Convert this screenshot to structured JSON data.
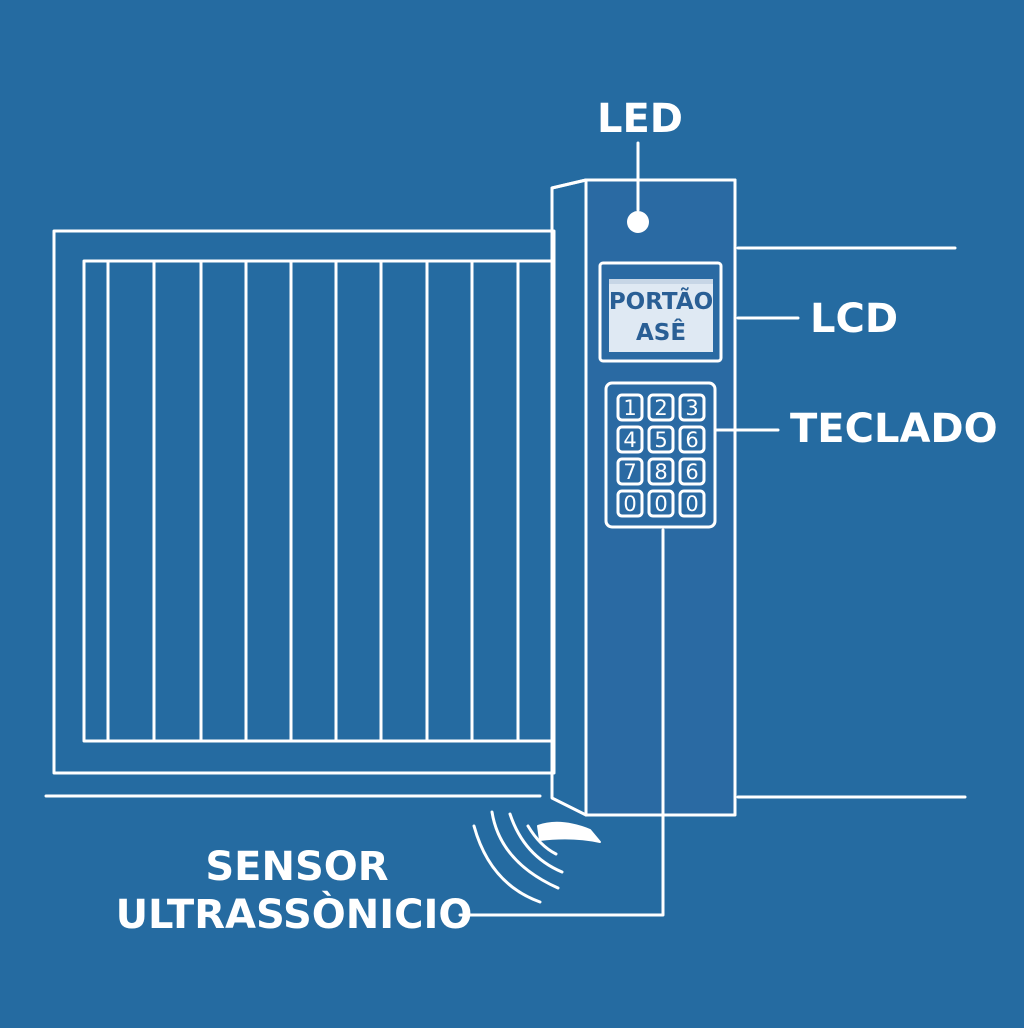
{
  "colors": {
    "background": "#256ba1",
    "line": "#ffffff",
    "lcd_screen": "#dfe9f3",
    "lcd_text": "#2a5f95",
    "panel": "#2a6aa3"
  },
  "labels": {
    "led": "LED",
    "lcd": "LCD",
    "keypad": "TECLADO",
    "sensor_line1": "SENSOR",
    "sensor_line2": "ULTRASSÒNICIO"
  },
  "lcd_display": {
    "line1": "PORTÃO",
    "line2": "ASÊ"
  },
  "keypad_keys": [
    "1",
    "2",
    "3",
    "4",
    "5",
    "6",
    "7",
    "8",
    "6",
    "0",
    "0",
    "0"
  ],
  "icons": {
    "led": "led-indicator-icon",
    "sensor": "ultrasonic-sensor-icon",
    "waves": "signal-waves-icon"
  }
}
